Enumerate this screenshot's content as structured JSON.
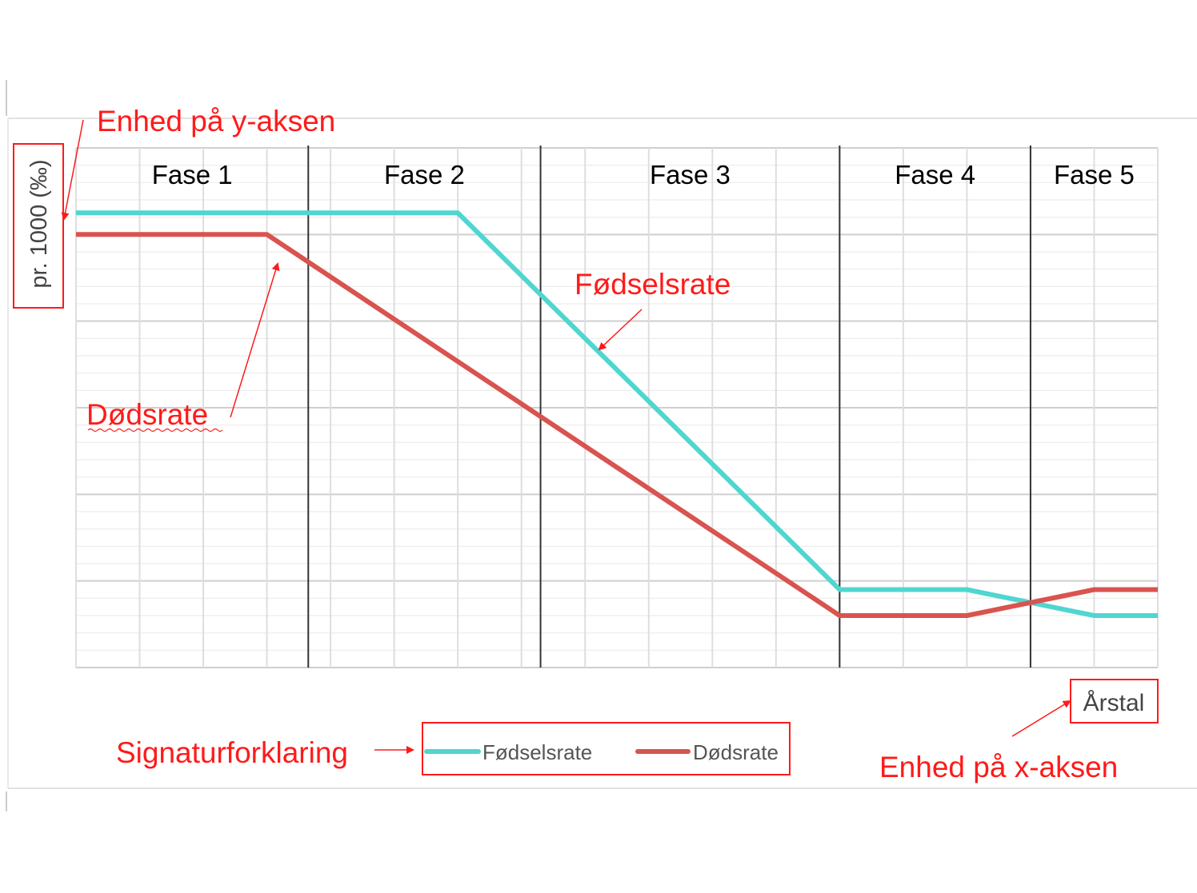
{
  "chart_data": {
    "type": "line",
    "x": [
      0,
      1,
      2,
      3,
      4,
      5,
      6,
      7,
      8,
      9,
      10,
      11,
      12,
      13,
      14,
      15,
      16,
      17
    ],
    "xlim": [
      0,
      17
    ],
    "ylim": [
      0,
      60
    ],
    "ylabel": "pr. 1000 (‰)",
    "xlabel": "Årstal",
    "grid": true,
    "legend_position": "bottom",
    "phases": [
      {
        "label": "Fase 1",
        "start": 0,
        "end": 3.65
      },
      {
        "label": "Fase 2",
        "start": 3.65,
        "end": 7.3
      },
      {
        "label": "Fase 3",
        "start": 7.3,
        "end": 12
      },
      {
        "label": "Fase 4",
        "start": 12,
        "end": 15
      },
      {
        "label": "Fase 5",
        "start": 15,
        "end": 17
      }
    ],
    "series": [
      {
        "name": "Fødselsrate",
        "color": "#4fd6d0",
        "points": [
          [
            0,
            52.5
          ],
          [
            6,
            52.5
          ],
          [
            12,
            9
          ],
          [
            14,
            9
          ],
          [
            16,
            6
          ],
          [
            17,
            6
          ]
        ]
      },
      {
        "name": "Dødsrate",
        "color": "#d9534f",
        "points": [
          [
            0,
            50
          ],
          [
            3,
            50
          ],
          [
            12,
            6
          ],
          [
            14,
            6
          ],
          [
            16,
            9
          ],
          [
            17,
            9
          ]
        ]
      }
    ],
    "annotations": {
      "y_unit": "Enhed på y-aksen",
      "x_unit": "Enhed på x-aksen",
      "legend": "Signaturforklaring",
      "birth": "Fødselsrate",
      "death": "Dødsrate"
    }
  }
}
